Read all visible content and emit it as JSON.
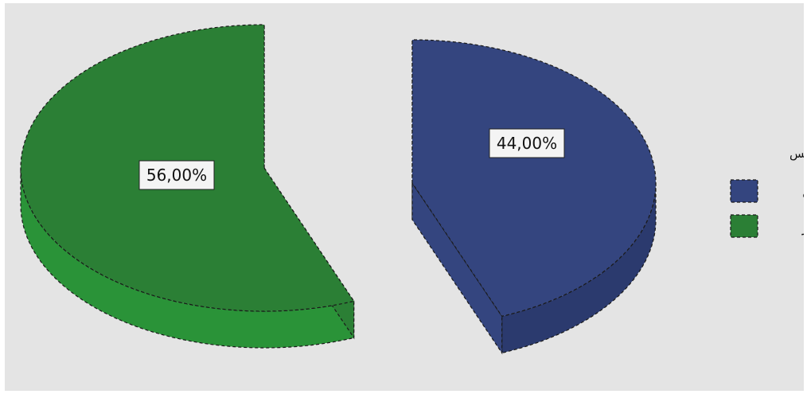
{
  "chart_data": {
    "type": "pie",
    "legend_title": "الجنس",
    "legend_position": "right",
    "slices": [
      {
        "name": "انثى",
        "value": 44.0,
        "label": "44,00%",
        "color": "#34457f",
        "side_color": "#2b3a6e"
      },
      {
        "name": "ذكر",
        "value": 56.0,
        "label": "56,00%",
        "color": "#2b7f35",
        "side_color": "#2a9338"
      }
    ]
  }
}
